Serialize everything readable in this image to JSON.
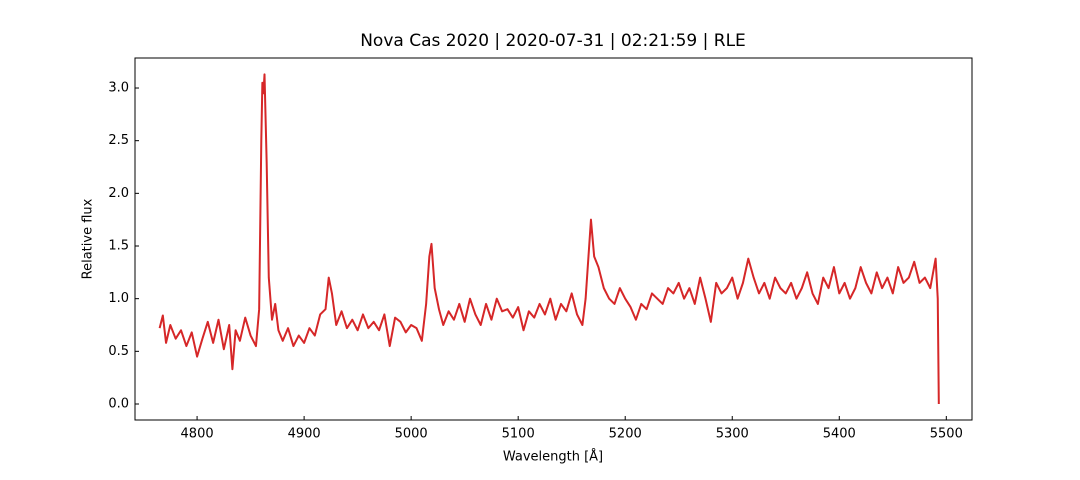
{
  "chart_data": {
    "type": "line",
    "title": "Nova Cas 2020 | 2020-07-31 | 02:21:59 | RLE",
    "xlabel": "Wavelength [Å]",
    "ylabel": "Relative flux",
    "xlim": [
      4742,
      5524
    ],
    "ylim": [
      -0.152,
      3.285
    ],
    "xticks": [
      4800,
      4900,
      5000,
      5100,
      5200,
      5300,
      5400,
      5500
    ],
    "yticks": [
      {
        "value": 0,
        "label": "0.0"
      },
      0.5,
      {
        "value": 1,
        "label": "1.0"
      },
      1.5,
      {
        "value": 2,
        "label": "2.0"
      },
      2.5,
      {
        "value": 3,
        "label": "3.0"
      }
    ],
    "grid": false,
    "x": [
      4765,
      4768,
      4771,
      4775,
      4780,
      4785,
      4790,
      4795,
      4800,
      4805,
      4810,
      4815,
      4820,
      4825,
      4830,
      4833,
      4836,
      4840,
      4845,
      4850,
      4855,
      4858,
      4860,
      4861,
      4862,
      4863,
      4865,
      4867,
      4870,
      4873,
      4876,
      4880,
      4885,
      4890,
      4895,
      4900,
      4905,
      4910,
      4915,
      4920,
      4923,
      4926,
      4930,
      4935,
      4940,
      4945,
      4950,
      4955,
      4960,
      4965,
      4970,
      4975,
      4980,
      4985,
      4990,
      4995,
      5000,
      5005,
      5010,
      5014,
      5017,
      5019,
      5022,
      5026,
      5030,
      5035,
      5040,
      5045,
      5050,
      5055,
      5060,
      5065,
      5070,
      5075,
      5080,
      5085,
      5090,
      5095,
      5100,
      5105,
      5110,
      5115,
      5120,
      5125,
      5130,
      5135,
      5140,
      5145,
      5150,
      5155,
      5160,
      5163,
      5166,
      5168,
      5171,
      5175,
      5180,
      5185,
      5190,
      5195,
      5200,
      5205,
      5210,
      5215,
      5220,
      5225,
      5230,
      5235,
      5240,
      5245,
      5250,
      5255,
      5260,
      5265,
      5270,
      5275,
      5280,
      5285,
      5290,
      5295,
      5300,
      5305,
      5310,
      5315,
      5320,
      5325,
      5330,
      5335,
      5340,
      5345,
      5350,
      5355,
      5360,
      5365,
      5370,
      5375,
      5380,
      5385,
      5390,
      5395,
      5400,
      5405,
      5410,
      5415,
      5420,
      5425,
      5430,
      5435,
      5440,
      5445,
      5450,
      5455,
      5460,
      5465,
      5470,
      5475,
      5480,
      5485,
      5490,
      5492,
      5493
    ],
    "series": [
      {
        "color": "#d62728",
        "values": [
          0.72,
          0.84,
          0.58,
          0.75,
          0.62,
          0.7,
          0.55,
          0.68,
          0.45,
          0.62,
          0.78,
          0.58,
          0.8,
          0.52,
          0.75,
          0.33,
          0.7,
          0.6,
          0.82,
          0.65,
          0.55,
          0.9,
          2.5,
          3.05,
          2.95,
          3.13,
          2.3,
          1.2,
          0.8,
          0.95,
          0.7,
          0.6,
          0.72,
          0.55,
          0.65,
          0.58,
          0.72,
          0.65,
          0.85,
          0.9,
          1.2,
          1.05,
          0.75,
          0.88,
          0.72,
          0.8,
          0.7,
          0.85,
          0.72,
          0.78,
          0.7,
          0.85,
          0.55,
          0.82,
          0.78,
          0.68,
          0.75,
          0.72,
          0.6,
          0.95,
          1.4,
          1.52,
          1.1,
          0.9,
          0.75,
          0.88,
          0.8,
          0.95,
          0.78,
          1.0,
          0.85,
          0.75,
          0.95,
          0.8,
          1.0,
          0.88,
          0.9,
          0.82,
          0.92,
          0.7,
          0.88,
          0.82,
          0.95,
          0.85,
          1.0,
          0.8,
          0.95,
          0.88,
          1.05,
          0.85,
          0.75,
          1.0,
          1.45,
          1.75,
          1.4,
          1.3,
          1.1,
          1.0,
          0.95,
          1.1,
          1.0,
          0.92,
          0.8,
          0.95,
          0.9,
          1.05,
          1.0,
          0.95,
          1.1,
          1.05,
          1.15,
          1.0,
          1.1,
          0.95,
          1.2,
          1.0,
          0.78,
          1.15,
          1.05,
          1.1,
          1.2,
          1.0,
          1.15,
          1.38,
          1.2,
          1.05,
          1.15,
          1.0,
          1.2,
          1.1,
          1.05,
          1.15,
          1.0,
          1.1,
          1.25,
          1.05,
          0.95,
          1.2,
          1.1,
          1.3,
          1.05,
          1.15,
          1.0,
          1.1,
          1.3,
          1.15,
          1.05,
          1.25,
          1.1,
          1.2,
          1.05,
          1.3,
          1.15,
          1.2,
          1.35,
          1.15,
          1.2,
          1.1,
          1.38,
          1.0,
          0.0
        ]
      }
    ]
  }
}
